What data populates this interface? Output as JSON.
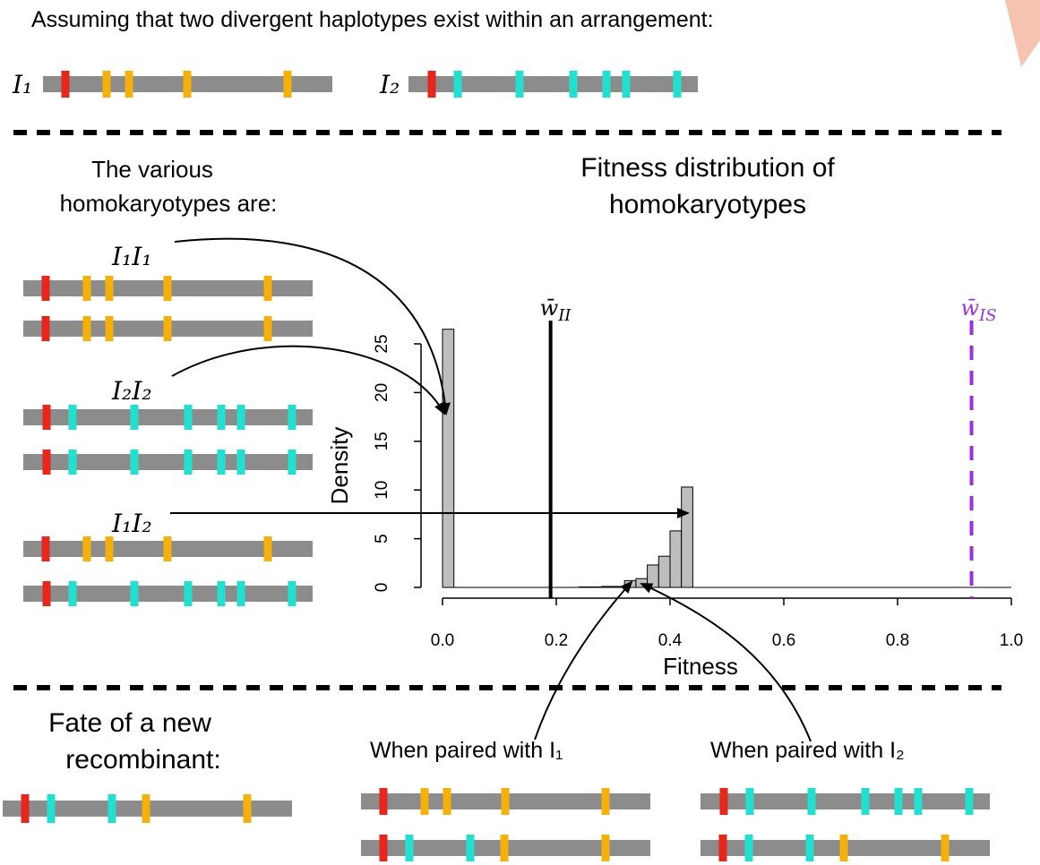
{
  "header": "Assuming that two divergent haplotypes exist within an arrangement:",
  "haplotypes": [
    "I₁",
    "I₂"
  ],
  "homokaryotypes": {
    "title": [
      "The various",
      "homokaryotypes are:"
    ],
    "labels": [
      "I₁I₁",
      "I₂I₂",
      "I₁I₂"
    ]
  },
  "chart_data": {
    "type": "histogram",
    "title": [
      "Fitness distribution of",
      "homokaryotypes"
    ],
    "xlabel": "Fitness",
    "ylabel": "Density",
    "bins": [
      0,
      0.02,
      0.04,
      0.06,
      0.08,
      0.1,
      0.12,
      0.14,
      0.16,
      0.18,
      0.2,
      0.22,
      0.24,
      0.26,
      0.28,
      0.3,
      0.32,
      0.34,
      0.36,
      0.38,
      0.4,
      0.42,
      0.44
    ],
    "values": [
      26.5,
      0,
      0,
      0,
      0,
      0,
      0,
      0,
      0,
      0,
      0,
      0,
      0.05,
      0.05,
      0.1,
      0.1,
      0.7,
      0.9,
      2.3,
      3.2,
      5.8,
      10.3
    ],
    "color": "#bebebe",
    "xlim": [
      0,
      1
    ],
    "ylim": [
      0,
      25
    ],
    "xticks": [
      {
        "value": 0,
        "label": "0.0"
      },
      {
        "value": 0.2,
        "label": "0.2"
      },
      {
        "value": 0.4,
        "label": "0.4"
      },
      {
        "value": 0.6,
        "label": "0.6"
      },
      {
        "value": 0.8,
        "label": "0.8"
      },
      {
        "value": 1,
        "label": "1.0"
      }
    ],
    "yticks": [
      0,
      5,
      10,
      15,
      20,
      25
    ],
    "vlines": [
      {
        "label": "w̄",
        "subscript": "II",
        "value": 0.19,
        "color": "#000000",
        "style": "solid"
      },
      {
        "label": "w̄",
        "subscript": "IS",
        "value": 0.93,
        "color": "#9b30e0",
        "style": "dashed"
      }
    ]
  },
  "recombinant": {
    "title": [
      "Fate of a new",
      "recombinant:"
    ],
    "pairings": [
      "When paired with I₁",
      "When paired with I₂"
    ]
  }
}
